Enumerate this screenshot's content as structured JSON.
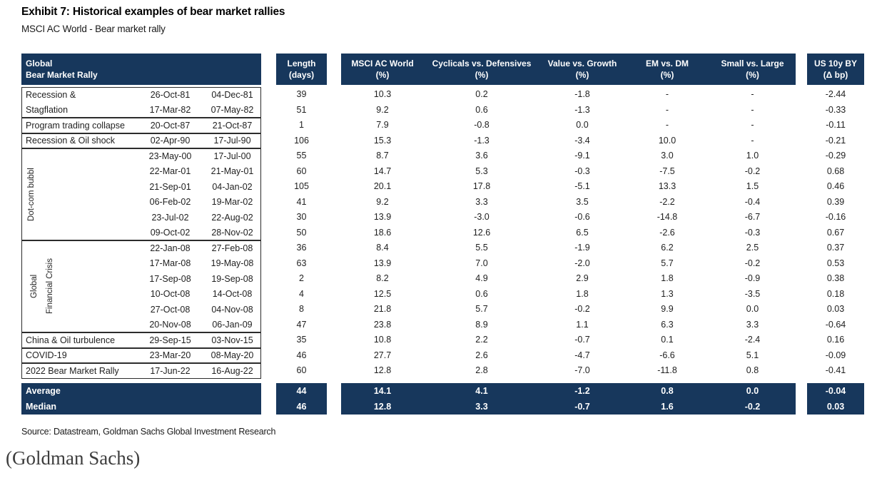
{
  "title": "Exhibit 7: Historical examples of bear market rallies",
  "subtitle": "MSCI AC World - Bear market rally",
  "source": "Source: Datastream, Goldman Sachs Global Investment Research",
  "attribution": "(Goldman Sachs)",
  "colors": {
    "navy": "#17375c",
    "group_border": "#2c2c2c"
  },
  "chart_data": {
    "type": "table",
    "title": "Exhibit 7: Historical examples of bear market rallies",
    "subtitle": "MSCI AC World - Bear market rally",
    "header": {
      "group": [
        "Global",
        "Bear Market Rally"
      ],
      "length": [
        "Length",
        "(days)"
      ],
      "msci": [
        "MSCI AC World",
        "(%)"
      ],
      "cyc": [
        "Cyclicals vs. Defensives",
        "(%)"
      ],
      "val": [
        "Value vs. Growth",
        "(%)"
      ],
      "em": [
        "EM vs. DM",
        "(%)"
      ],
      "small": [
        "Small vs. Large",
        "(%)"
      ],
      "us": [
        "US 10y BY",
        "(Δ bp)"
      ]
    },
    "vertical_labels": {
      "dotcom": "Dot-com bubbl",
      "global": "Global",
      "financial_crisis": "Financial Crisis"
    },
    "rows": [
      {
        "group": "Recession & Stagflation",
        "label": "Recession &",
        "start": "26-Oct-81",
        "end": "04-Dec-81",
        "length": "39",
        "msci": "10.3",
        "cyc": "0.2",
        "val": "-1.8",
        "em": "-",
        "small": "-",
        "us": "-2.44"
      },
      {
        "group": "Recession & Stagflation",
        "label": "Stagflation",
        "start": "17-Mar-82",
        "end": "07-May-82",
        "length": "51",
        "msci": "9.2",
        "cyc": "0.6",
        "val": "-1.3",
        "em": "-",
        "small": "-",
        "us": "-0.33"
      },
      {
        "group": "Program trading collapse",
        "label": "Program trading collapse",
        "start": "20-Oct-87",
        "end": "21-Oct-87",
        "length": "1",
        "msci": "7.9",
        "cyc": "-0.8",
        "val": "0.0",
        "em": "-",
        "small": "-",
        "us": "-0.11"
      },
      {
        "group": "Recession & Oil shock",
        "label": "Recession & Oil shock",
        "start": "02-Apr-90",
        "end": "17-Jul-90",
        "length": "106",
        "msci": "15.3",
        "cyc": "-1.3",
        "val": "-3.4",
        "em": "10.0",
        "small": "-",
        "us": "-0.21"
      },
      {
        "group": "Dot-com bubbl",
        "label": "",
        "start": "23-May-00",
        "end": "17-Jul-00",
        "length": "55",
        "msci": "8.7",
        "cyc": "3.6",
        "val": "-9.1",
        "em": "3.0",
        "small": "1.0",
        "us": "-0.29"
      },
      {
        "group": "Dot-com bubbl",
        "label": "",
        "start": "22-Mar-01",
        "end": "21-May-01",
        "length": "60",
        "msci": "14.7",
        "cyc": "5.3",
        "val": "-0.3",
        "em": "-7.5",
        "small": "-0.2",
        "us": "0.68"
      },
      {
        "group": "Dot-com bubbl",
        "label": "",
        "start": "21-Sep-01",
        "end": "04-Jan-02",
        "length": "105",
        "msci": "20.1",
        "cyc": "17.8",
        "val": "-5.1",
        "em": "13.3",
        "small": "1.5",
        "us": "0.46"
      },
      {
        "group": "Dot-com bubbl",
        "label": "",
        "start": "06-Feb-02",
        "end": "19-Mar-02",
        "length": "41",
        "msci": "9.2",
        "cyc": "3.3",
        "val": "3.5",
        "em": "-2.2",
        "small": "-0.4",
        "us": "0.39"
      },
      {
        "group": "Dot-com bubbl",
        "label": "",
        "start": "23-Jul-02",
        "end": "22-Aug-02",
        "length": "30",
        "msci": "13.9",
        "cyc": "-3.0",
        "val": "-0.6",
        "em": "-14.8",
        "small": "-6.7",
        "us": "-0.16"
      },
      {
        "group": "Dot-com bubbl",
        "label": "",
        "start": "09-Oct-02",
        "end": "28-Nov-02",
        "length": "50",
        "msci": "18.6",
        "cyc": "12.6",
        "val": "6.5",
        "em": "-2.6",
        "small": "-0.3",
        "us": "0.67"
      },
      {
        "group": "Global Financial Crisis",
        "label": "",
        "start": "22-Jan-08",
        "end": "27-Feb-08",
        "length": "36",
        "msci": "8.4",
        "cyc": "5.5",
        "val": "-1.9",
        "em": "6.2",
        "small": "2.5",
        "us": "0.37"
      },
      {
        "group": "Global Financial Crisis",
        "label": "",
        "start": "17-Mar-08",
        "end": "19-May-08",
        "length": "63",
        "msci": "13.9",
        "cyc": "7.0",
        "val": "-2.0",
        "em": "5.7",
        "small": "-0.2",
        "us": "0.53"
      },
      {
        "group": "Global Financial Crisis",
        "label": "",
        "start": "17-Sep-08",
        "end": "19-Sep-08",
        "length": "2",
        "msci": "8.2",
        "cyc": "4.9",
        "val": "2.9",
        "em": "1.8",
        "small": "-0.9",
        "us": "0.38"
      },
      {
        "group": "Global Financial Crisis",
        "label": "",
        "start": "10-Oct-08",
        "end": "14-Oct-08",
        "length": "4",
        "msci": "12.5",
        "cyc": "0.6",
        "val": "1.8",
        "em": "1.3",
        "small": "-3.5",
        "us": "0.18"
      },
      {
        "group": "Global Financial Crisis",
        "label": "",
        "start": "27-Oct-08",
        "end": "04-Nov-08",
        "length": "8",
        "msci": "21.8",
        "cyc": "5.7",
        "val": "-0.2",
        "em": "9.9",
        "small": "0.0",
        "us": "0.03"
      },
      {
        "group": "Global Financial Crisis",
        "label": "",
        "start": "20-Nov-08",
        "end": "06-Jan-09",
        "length": "47",
        "msci": "23.8",
        "cyc": "8.9",
        "val": "1.1",
        "em": "6.3",
        "small": "3.3",
        "us": "-0.64"
      },
      {
        "group": "China & Oil turbulence",
        "label": "China & Oil turbulence",
        "start": "29-Sep-15",
        "end": "03-Nov-15",
        "length": "35",
        "msci": "10.8",
        "cyc": "2.2",
        "val": "-0.7",
        "em": "0.1",
        "small": "-2.4",
        "us": "0.16"
      },
      {
        "group": "COVID-19",
        "label": "COVID-19",
        "start": "23-Mar-20",
        "end": "08-May-20",
        "length": "46",
        "msci": "27.7",
        "cyc": "2.6",
        "val": "-4.7",
        "em": "-6.6",
        "small": "5.1",
        "us": "-0.09"
      },
      {
        "group": "2022 Bear Market Rally",
        "label": "2022 Bear Market Rally",
        "start": "17-Jun-22",
        "end": "16-Aug-22",
        "length": "60",
        "msci": "12.8",
        "cyc": "2.8",
        "val": "-7.0",
        "em": "-11.8",
        "small": "0.8",
        "us": "-0.41"
      }
    ],
    "summary_rows": [
      {
        "label": "Average",
        "length": "44",
        "msci": "14.1",
        "cyc": "4.1",
        "val": "-1.2",
        "em": "0.8",
        "small": "0.0",
        "us": "-0.04"
      },
      {
        "label": "Median",
        "length": "46",
        "msci": "12.8",
        "cyc": "3.3",
        "val": "-0.7",
        "em": "1.6",
        "small": "-0.2",
        "us": "0.03"
      }
    ]
  }
}
